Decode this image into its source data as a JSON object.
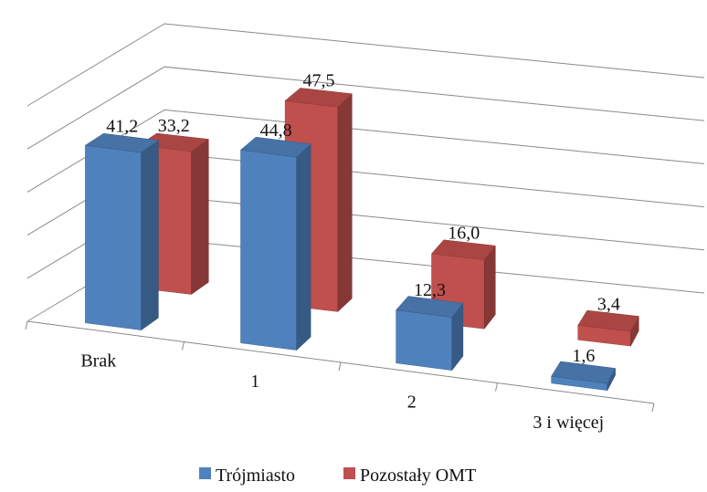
{
  "chart_data": {
    "type": "bar",
    "categories": [
      "Brak",
      "1",
      "2",
      "3 i więcej"
    ],
    "series": [
      {
        "name": "Trójmiasto",
        "values": [
          41.2,
          44.8,
          12.3,
          1.6
        ],
        "labels": [
          "41,2",
          "44,8",
          "12,3",
          "1,6"
        ],
        "color": "#4F81BD"
      },
      {
        "name": "Pozostały OMT",
        "values": [
          33.2,
          47.5,
          16.0,
          3.4
        ],
        "labels": [
          "33,2",
          "47,5",
          "16,0",
          "3,4"
        ],
        "color": "#C0504D"
      }
    ],
    "ylim": [
      0,
      50
    ],
    "grid": true,
    "legend_position": "bottom",
    "style": "3d-clustered-column"
  }
}
